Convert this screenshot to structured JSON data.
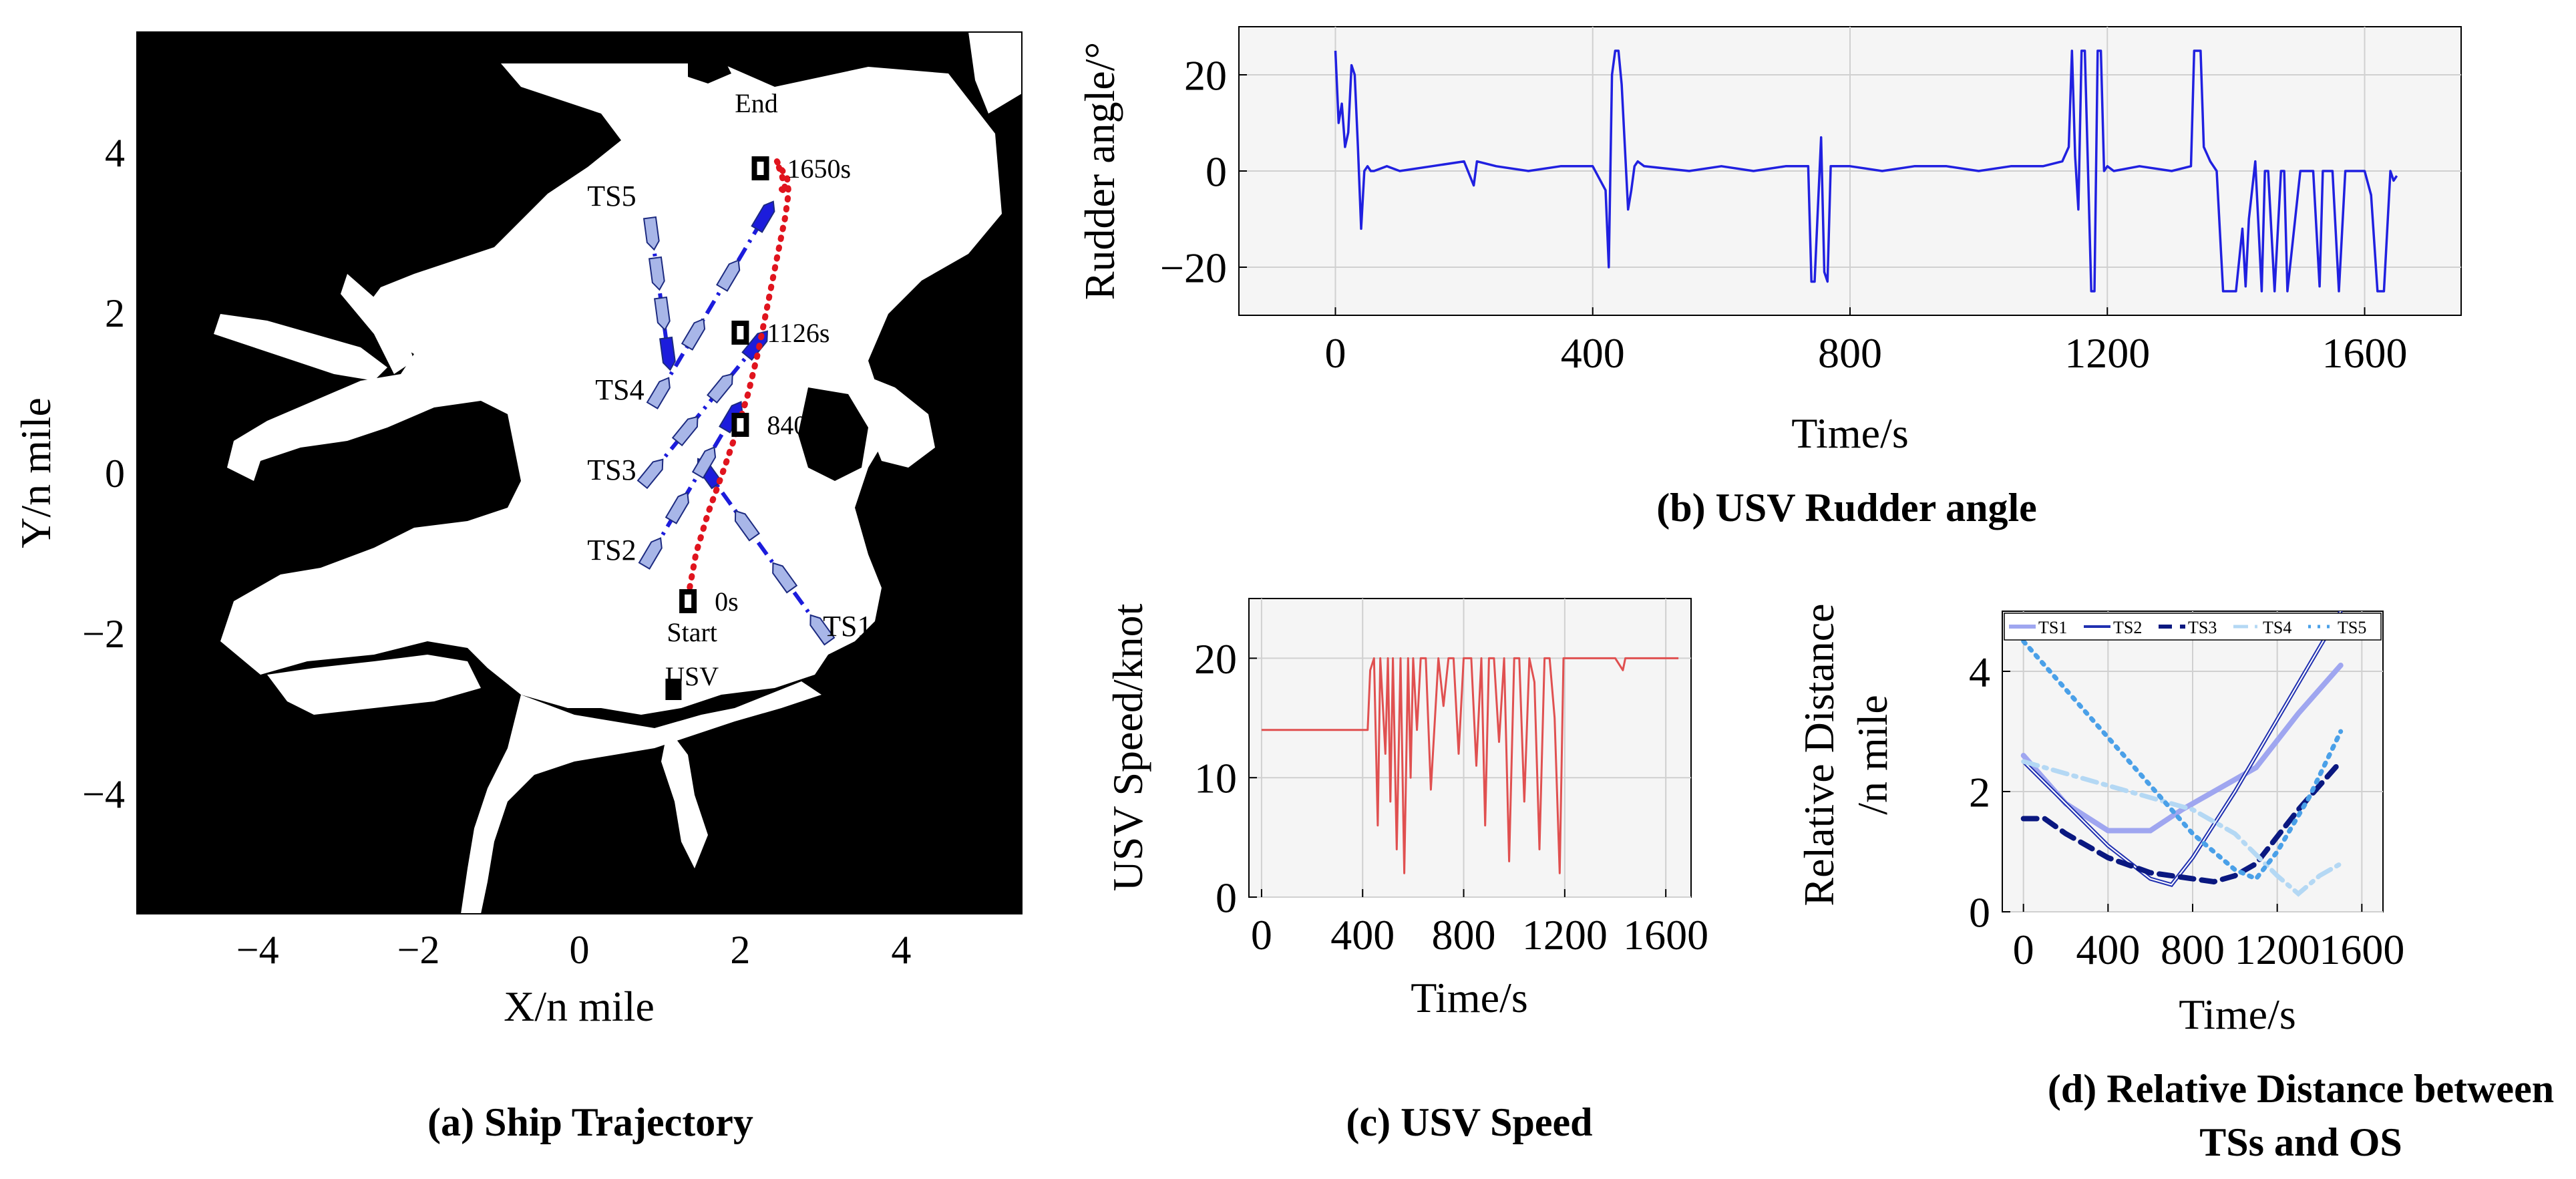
{
  "figure": {
    "captions": {
      "a": "(a) Ship Trajectory",
      "b": "(b) USV Rudder angle",
      "c": "(c) USV Speed",
      "d_line1": "(d) Relative Distance between",
      "d_line2": "TSs and OS"
    }
  },
  "colors": {
    "usv_path": "#e0141e",
    "ts_ship": "#1c1cdc",
    "rudder": "#2020e0",
    "speed": "#e05050",
    "ts1": "#9fa6f0",
    "ts2": "#2030b0",
    "ts3": "#0a1880",
    "ts4": "#b4d8f4",
    "ts5": "#4aa0e8",
    "grid": "#d0d0d0",
    "plot_bg": "#f5f5f5"
  },
  "chart_data": [
    {
      "id": "a",
      "type": "scatter",
      "title": "(a) Ship Trajectory",
      "xlabel": "X/n mile",
      "ylabel": "Y/n mile",
      "xlim": [
        -5.5,
        5.5
      ],
      "ylim": [
        -5.5,
        5.5
      ],
      "xticks": [
        -4,
        -2,
        0,
        2,
        4
      ],
      "yticks": [
        4,
        2,
        0,
        -2,
        -4
      ],
      "xtick_labels": [
        "−4",
        "−2",
        "0",
        "2",
        "4"
      ],
      "ytick_labels": [
        "4",
        "2",
        "0",
        "−2",
        "−4"
      ],
      "usv_path": {
        "name": "USV",
        "x": [
          1.35,
          1.45,
          1.6,
          1.78,
          1.95,
          2.1,
          2.22,
          2.32,
          2.42,
          2.5,
          2.56,
          2.6,
          2.58,
          2.5,
          2.45,
          2.52,
          2.57,
          2.5
        ],
        "y": [
          -1.55,
          -1.0,
          -0.5,
          0.0,
          0.5,
          1.0,
          1.5,
          2.0,
          2.5,
          2.9,
          3.2,
          3.5,
          3.7,
          3.8,
          3.9,
          3.7,
          3.5,
          3.55
        ]
      },
      "usv_markers": [
        {
          "x": 1.35,
          "y": -1.6,
          "label": "0s"
        },
        {
          "x": 2.0,
          "y": 0.6,
          "label": "840s"
        },
        {
          "x": 2.0,
          "y": 1.75,
          "label": "1126s"
        },
        {
          "x": 2.25,
          "y": 3.8,
          "label": "1650s"
        }
      ],
      "annotations": {
        "end": "End",
        "start": "Start",
        "usv": "USV"
      },
      "target_ships": [
        {
          "name": "TS1",
          "x": [
            3.0,
            1.6
          ],
          "y": [
            -1.95,
            0.0
          ]
        },
        {
          "name": "TS2",
          "x": [
            0.9,
            1.9
          ],
          "y": [
            -1.0,
            0.7
          ]
        },
        {
          "name": "TS3",
          "x": [
            0.9,
            2.2
          ],
          "y": [
            0.0,
            1.6
          ]
        },
        {
          "name": "TS4",
          "x": [
            1.0,
            2.3
          ],
          "y": [
            1.0,
            3.2
          ]
        },
        {
          "name": "TS5",
          "x": [
            0.9,
            1.1
          ],
          "y": [
            3.0,
            1.5
          ]
        }
      ]
    },
    {
      "id": "b",
      "type": "line",
      "title": "(b) USV Rudder angle",
      "xlabel": "Time/s",
      "ylabel": "Rudder angle/°",
      "xlim": [
        -150,
        1750
      ],
      "ylim": [
        -30,
        30
      ],
      "xticks": [
        0,
        400,
        800,
        1200,
        1600
      ],
      "yticks": [
        20,
        0,
        -20
      ],
      "xtick_labels": [
        "0",
        "400",
        "800",
        "1200",
        "1600"
      ],
      "ytick_labels": [
        "20",
        "0",
        "−20"
      ],
      "series": [
        {
          "name": "Rudder angle",
          "x": [
            0,
            5,
            10,
            15,
            20,
            25,
            30,
            35,
            40,
            45,
            50,
            55,
            60,
            80,
            100,
            150,
            200,
            215,
            220,
            250,
            300,
            350,
            400,
            420,
            425,
            430,
            435,
            440,
            445,
            450,
            455,
            460,
            465,
            470,
            480,
            550,
            600,
            650,
            700,
            735,
            740,
            745,
            750,
            755,
            760,
            765,
            770,
            800,
            850,
            900,
            950,
            1000,
            1050,
            1100,
            1130,
            1140,
            1145,
            1150,
            1155,
            1160,
            1165,
            1170,
            1175,
            1180,
            1185,
            1190,
            1195,
            1200,
            1210,
            1250,
            1300,
            1330,
            1335,
            1340,
            1345,
            1350,
            1360,
            1370,
            1380,
            1385,
            1400,
            1410,
            1415,
            1420,
            1430,
            1440,
            1445,
            1450,
            1460,
            1470,
            1475,
            1480,
            1500,
            1520,
            1530,
            1535,
            1550,
            1560,
            1570,
            1600,
            1610,
            1620,
            1630,
            1640,
            1645,
            1650
          ],
          "y": [
            25,
            10,
            14,
            5,
            8,
            22,
            20,
            5,
            -12,
            0,
            1,
            0,
            0,
            1,
            0,
            1,
            2,
            -3,
            2,
            1,
            0,
            1,
            1,
            -4,
            -20,
            20,
            25,
            25,
            18,
            5,
            -8,
            -4,
            1,
            2,
            1,
            0,
            1,
            0,
            1,
            1,
            -23,
            -23,
            -8,
            7,
            -21,
            -23,
            1,
            1,
            0,
            1,
            1,
            0,
            1,
            1,
            2,
            5,
            25,
            3,
            -8,
            25,
            25,
            0,
            -25,
            -25,
            25,
            25,
            0,
            1,
            0,
            1,
            0,
            1,
            25,
            25,
            25,
            5,
            2,
            0,
            -25,
            -25,
            -25,
            -12,
            -24,
            -10,
            2,
            -25,
            0,
            0,
            -25,
            0,
            0,
            -25,
            0,
            0,
            -24,
            0,
            0,
            -25,
            0,
            0,
            -5,
            -25,
            -25,
            0,
            -2,
            -1
          ]
        }
      ]
    },
    {
      "id": "c",
      "type": "line",
      "title": "(c) USV Speed",
      "xlabel": "Time/s",
      "ylabel": "USV Speed/knot",
      "xlim": [
        -50,
        1700
      ],
      "ylim": [
        0,
        25
      ],
      "xticks": [
        0,
        400,
        800,
        1200,
        1600
      ],
      "yticks": [
        20,
        10,
        0
      ],
      "xtick_labels": [
        "0",
        "400",
        "800",
        "1200",
        "1600"
      ],
      "ytick_labels": [
        "20",
        "10",
        "0"
      ],
      "series": [
        {
          "name": "USV Speed",
          "x": [
            0,
            420,
            430,
            445,
            460,
            470,
            490,
            500,
            510,
            520,
            535,
            550,
            565,
            580,
            590,
            600,
            615,
            630,
            650,
            670,
            700,
            720,
            740,
            760,
            780,
            800,
            830,
            850,
            870,
            885,
            900,
            920,
            940,
            960,
            980,
            1000,
            1020,
            1040,
            1060,
            1080,
            1100,
            1120,
            1140,
            1160,
            1180,
            1195,
            1210,
            1240,
            1260,
            1300,
            1400,
            1430,
            1440,
            1500,
            1650
          ],
          "x_note": "",
          "y": [
            14,
            14,
            19,
            20,
            6,
            20,
            12,
            20,
            8,
            20,
            4,
            20,
            2,
            20,
            10,
            20,
            14,
            20,
            20,
            9,
            20,
            16,
            20,
            20,
            12,
            20,
            20,
            11,
            20,
            6,
            20,
            20,
            13,
            20,
            3,
            20,
            20,
            8,
            20,
            18,
            4,
            20,
            20,
            15,
            2,
            20,
            20,
            20,
            20,
            20,
            20,
            19,
            20,
            20,
            20
          ]
        }
      ]
    },
    {
      "id": "d",
      "type": "line",
      "title": "(d) Relative Distance between TSs and OS",
      "xlabel": "Time/s",
      "ylabel": "Relative Distance /n mile",
      "ylabel_line1": "Relative Distance",
      "ylabel_line2": "/n mile",
      "xlim": [
        -100,
        1700
      ],
      "ylim": [
        0,
        5
      ],
      "xticks": [
        0,
        400,
        800,
        1200,
        1600
      ],
      "yticks": [
        4,
        2,
        0
      ],
      "xtick_labels": [
        "0",
        "400",
        "800",
        "1200",
        "1600"
      ],
      "ytick_labels": [
        "4",
        "2",
        "0"
      ],
      "legend_location": "top",
      "series": [
        {
          "name": "TS1",
          "x": [
            0,
            200,
            400,
            600,
            750,
            900,
            1100,
            1300,
            1500
          ],
          "y": [
            2.6,
            1.8,
            1.35,
            1.35,
            1.7,
            2.0,
            2.4,
            3.3,
            4.1
          ]
        },
        {
          "name": "TS2",
          "x": [
            0,
            200,
            400,
            600,
            700,
            800,
            1000,
            1200,
            1500
          ],
          "y": [
            2.5,
            1.8,
            1.1,
            0.55,
            0.45,
            0.9,
            2.0,
            3.2,
            5.0
          ]
        },
        {
          "name": "TS3",
          "x": [
            0,
            100,
            200,
            400,
            600,
            800,
            900,
            1000,
            1100,
            1300,
            1500
          ],
          "y": [
            1.55,
            1.55,
            1.3,
            0.9,
            0.65,
            0.55,
            0.5,
            0.6,
            0.8,
            1.7,
            2.5
          ]
        },
        {
          "name": "TS4",
          "x": [
            0,
            400,
            800,
            1000,
            1200,
            1300,
            1400,
            1500
          ],
          "y": [
            2.5,
            2.1,
            1.7,
            1.3,
            0.6,
            0.3,
            0.6,
            0.8
          ]
        },
        {
          "name": "TS5",
          "x": [
            0,
            200,
            400,
            600,
            800,
            1000,
            1100,
            1200,
            1350,
            1500
          ],
          "y": [
            4.5,
            3.7,
            2.9,
            2.1,
            1.3,
            0.7,
            0.55,
            1.0,
            1.9,
            3.0
          ]
        }
      ]
    }
  ]
}
